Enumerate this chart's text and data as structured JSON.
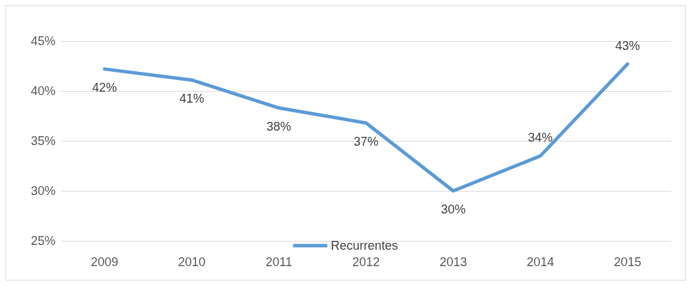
{
  "chart_data": {
    "type": "line",
    "categories": [
      "2009",
      "2010",
      "2011",
      "2012",
      "2013",
      "2014",
      "2015"
    ],
    "series": [
      {
        "name": "Recurrentes",
        "color": "#5b9bd5",
        "values": [
          42.2,
          41.1,
          38.3,
          36.8,
          30.0,
          33.5,
          42.7
        ],
        "value_labels": [
          "42%",
          "41%",
          "38%",
          "37%",
          "30%",
          "34%",
          "43%"
        ]
      }
    ],
    "ylim": [
      25,
      45
    ],
    "yticks": [
      {
        "value": 25,
        "label": "25%"
      },
      {
        "value": 30,
        "label": "30%"
      },
      {
        "value": 35,
        "label": "35%"
      },
      {
        "value": 40,
        "label": "40%"
      },
      {
        "value": 45,
        "label": "45%"
      }
    ],
    "grid": "y",
    "legend": "bottom",
    "marker": "none",
    "line_style": "solid"
  }
}
